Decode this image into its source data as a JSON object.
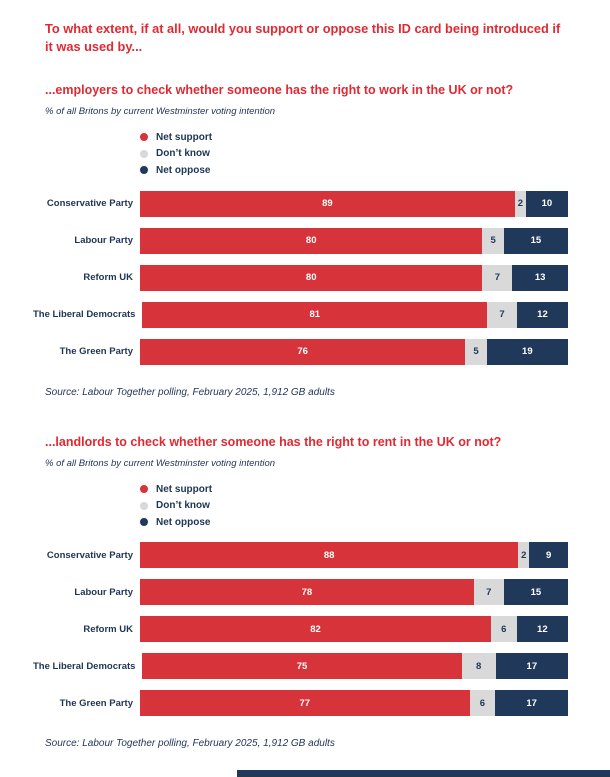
{
  "page": {
    "title": "To what extent, if at all, would you support or oppose this ID card being introduced if it was used by..."
  },
  "colors": {
    "title_red": "#E02A33",
    "support_red": "#D7333A",
    "dont_know_gray": "#D9D9D9",
    "oppose_navy": "#20395B",
    "text_navy": "#1E3456"
  },
  "chart_data": [
    {
      "type": "bar",
      "orientation": "horizontal",
      "stacked": true,
      "title": "...employers to check whether someone has the right to work in the UK or not?",
      "subtitle": "% of all Britons by current Westminster voting intention",
      "source": "Source: Labour Together polling, February 2025, 1,912 GB adults",
      "categories": [
        "Conservative Party",
        "Labour Party",
        "Reform UK",
        "The Liberal Democrats",
        "The Green Party"
      ],
      "series": [
        {
          "name": "Net support",
          "color": "#D7333A",
          "values": [
            89,
            80,
            80,
            81,
            76
          ]
        },
        {
          "name": "Don’t know",
          "color": "#D9D9D9",
          "values": [
            2,
            5,
            7,
            7,
            5
          ]
        },
        {
          "name": "Net oppose",
          "color": "#20395B",
          "values": [
            10,
            15,
            13,
            12,
            19
          ]
        }
      ],
      "xlim": [
        0,
        100
      ],
      "grid": false,
      "legend_position": "top-left",
      "data_labels": true
    },
    {
      "type": "bar",
      "orientation": "horizontal",
      "stacked": true,
      "title": "...landlords to check whether someone has the right to rent in the UK or not?",
      "subtitle": "% of all Britons by current Westminster voting intention",
      "source": "Source: Labour Together polling, February 2025, 1,912 GB adults",
      "categories": [
        "Conservative Party",
        "Labour Party",
        "Reform UK",
        "The Liberal Democrats",
        "The Green Party"
      ],
      "series": [
        {
          "name": "Net support",
          "color": "#D7333A",
          "values": [
            88,
            78,
            82,
            75,
            77
          ]
        },
        {
          "name": "Don’t know",
          "color": "#D9D9D9",
          "values": [
            2,
            7,
            6,
            8,
            6
          ]
        },
        {
          "name": "Net oppose",
          "color": "#20395B",
          "values": [
            9,
            15,
            12,
            17,
            17
          ]
        }
      ],
      "xlim": [
        0,
        100
      ],
      "grid": false,
      "legend_position": "top-left",
      "data_labels": true
    }
  ]
}
